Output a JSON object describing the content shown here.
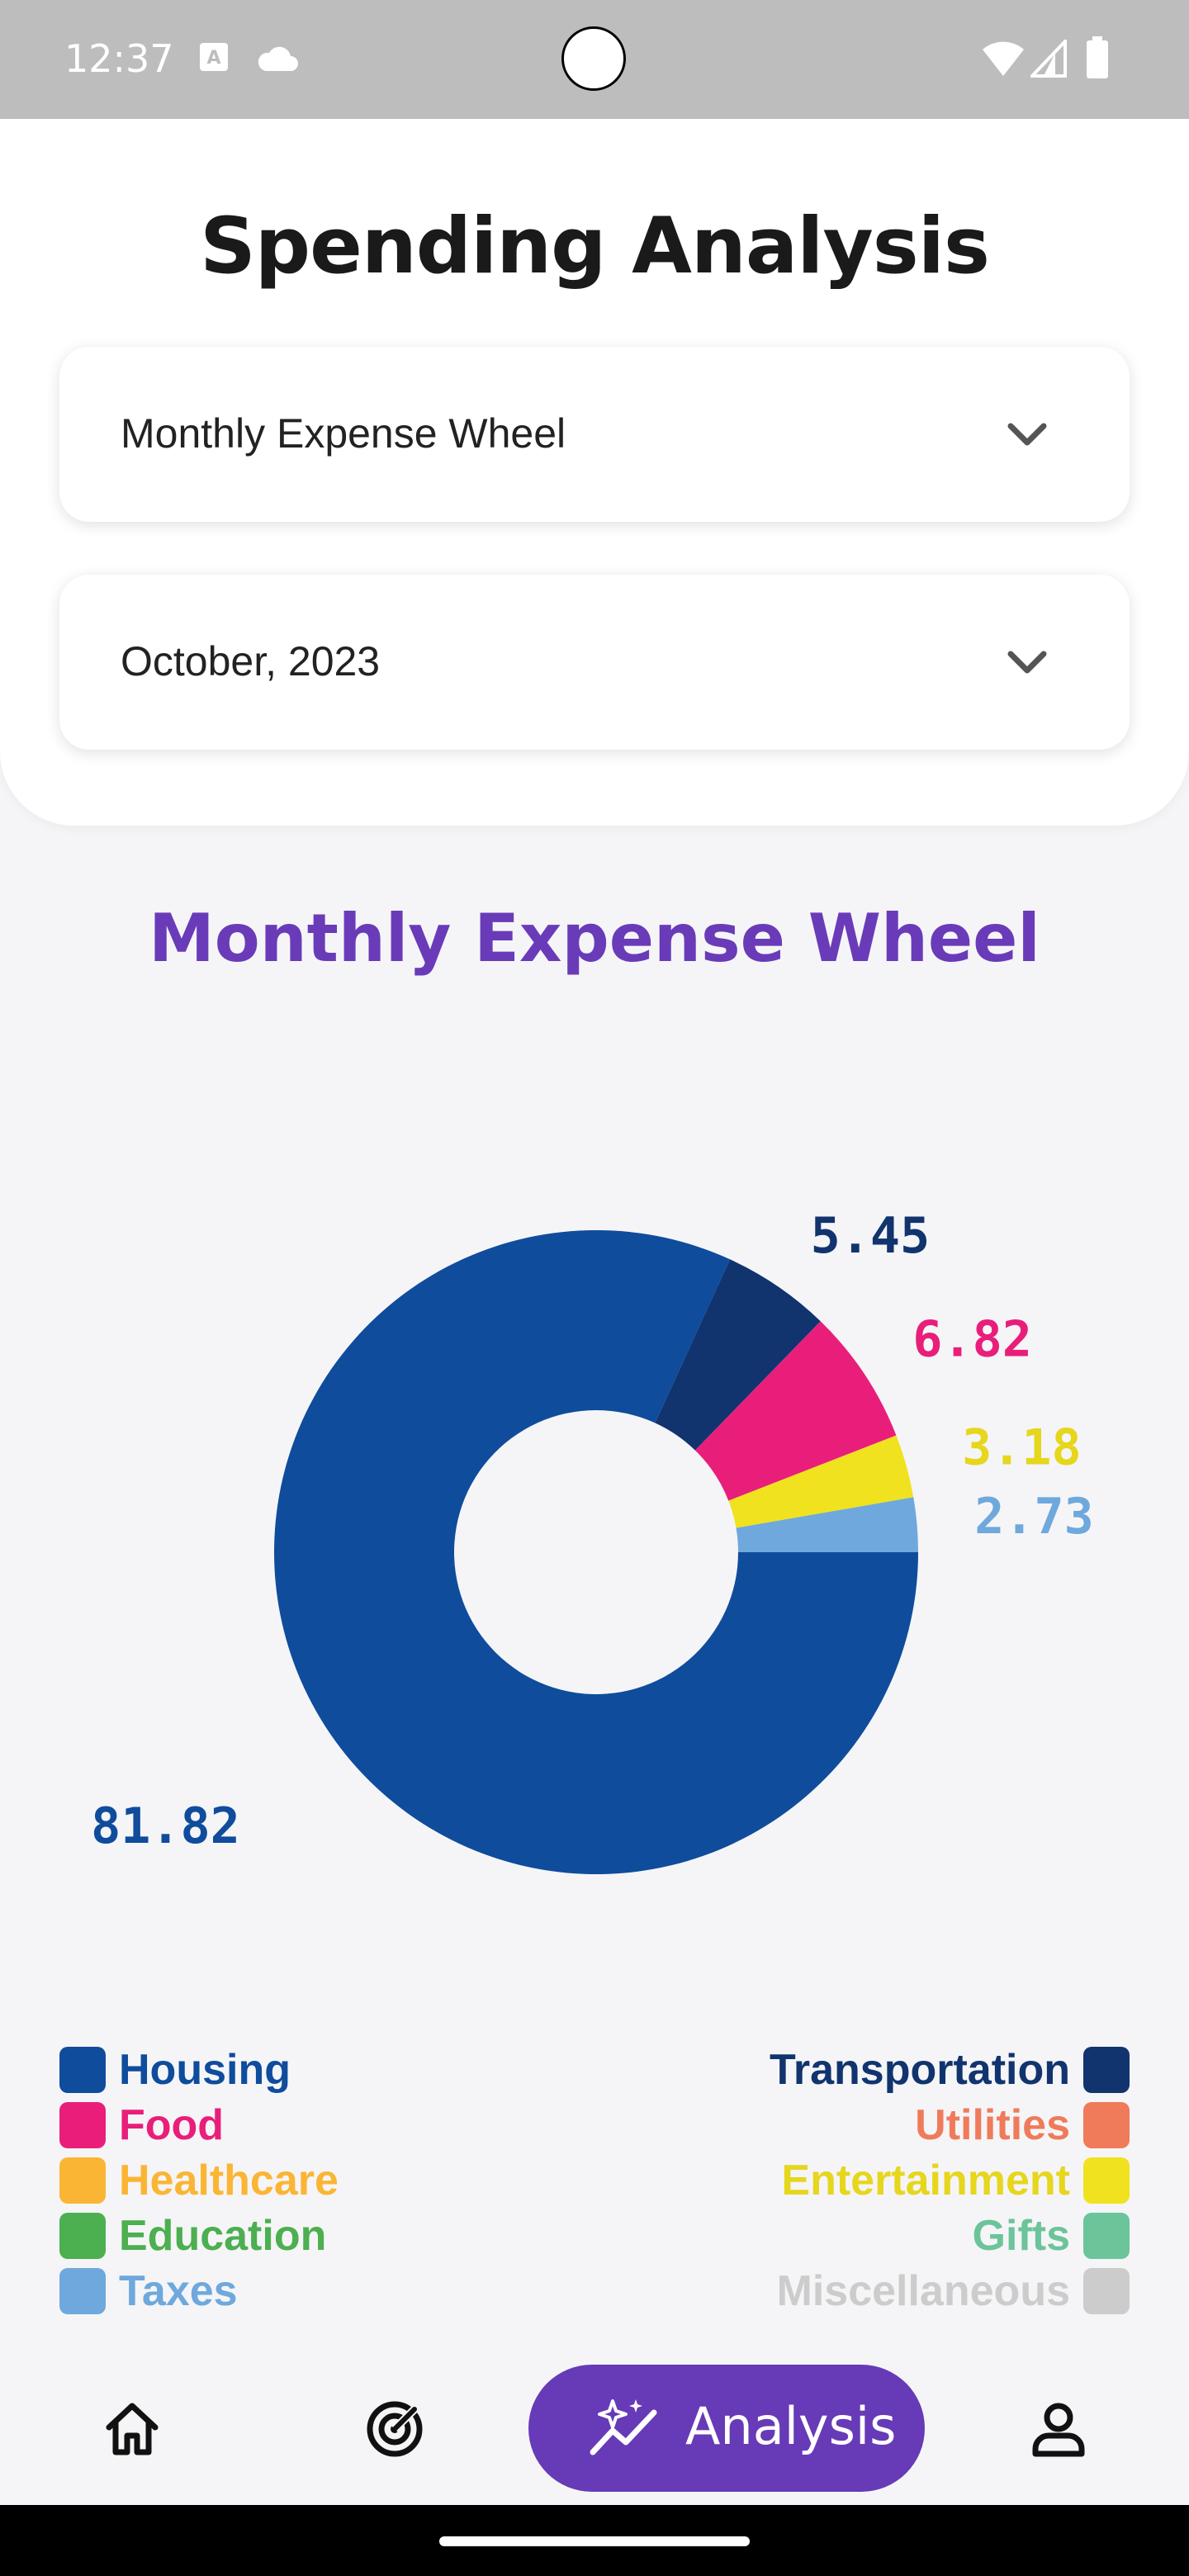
{
  "status_bar": {
    "time": "12:37"
  },
  "header": {
    "title": "Spending Analysis",
    "chart_select": {
      "value": "Monthly Expense Wheel"
    },
    "month_select": {
      "value": "October, 2023"
    }
  },
  "chart_data": {
    "type": "pie",
    "title": "Monthly Expense Wheel",
    "donut": true,
    "slices": [
      {
        "label": "Housing",
        "value": 81.82,
        "color": "#0f4c9c"
      },
      {
        "label": "Transportation",
        "value": 5.45,
        "color": "#11346e"
      },
      {
        "label": "Food",
        "value": 6.82,
        "color": "#e91e7a"
      },
      {
        "label": "Entertainment",
        "value": 3.18,
        "color": "#f0e21f"
      },
      {
        "label": "Taxes",
        "value": 2.73,
        "color": "#6fa8dc"
      }
    ]
  },
  "legend": {
    "left": [
      {
        "label": "Housing",
        "color": "#0f4c9c"
      },
      {
        "label": "Food",
        "color": "#e91e7a"
      },
      {
        "label": "Healthcare",
        "color": "#fbb534"
      },
      {
        "label": "Education",
        "color": "#4caf50"
      },
      {
        "label": "Taxes",
        "color": "#6fa8dc"
      }
    ],
    "right": [
      {
        "label": "Transportation",
        "color": "#11346e"
      },
      {
        "label": "Utilities",
        "color": "#ef7b5b"
      },
      {
        "label": "Entertainment",
        "color": "#f0e21f"
      },
      {
        "label": "Gifts",
        "color": "#6cc49a"
      },
      {
        "label": "Miscellaneous",
        "color": "#cccccc"
      }
    ]
  },
  "nav": {
    "items": [
      {
        "icon": "home-icon"
      },
      {
        "icon": "radar-icon"
      },
      {
        "icon": "analysis-icon",
        "label": "Analysis",
        "active": true
      },
      {
        "icon": "profile-icon"
      }
    ]
  }
}
